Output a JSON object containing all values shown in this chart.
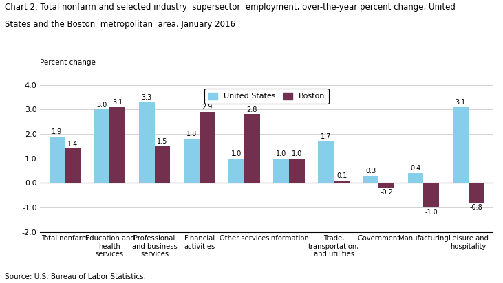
{
  "title_line1": "Chart 2. Total nonfarm and selected industry  supersector  employment, over-the-year percent change, United",
  "title_line2": "States and the Boston  metropolitan  area, January 2016",
  "ylabel": "Percent change",
  "categories": [
    "Total nonfarm",
    "Education and\nhealth\nservices",
    "Professional\nand business\nservices",
    "Financial\nactivities",
    "Other services",
    "Information",
    "Trade,\ntransportation,\nand utilities",
    "Government",
    "Manufacturing",
    "Leisure and\nhospitality"
  ],
  "us_values": [
    1.9,
    3.0,
    3.3,
    1.8,
    1.0,
    1.0,
    1.7,
    0.3,
    0.4,
    3.1
  ],
  "boston_values": [
    1.4,
    3.1,
    1.5,
    2.9,
    2.8,
    1.0,
    0.1,
    -0.2,
    -1.0,
    -0.8
  ],
  "us_color": "#87CEEB",
  "boston_color": "#722F4E",
  "ylim": [
    -2.0,
    4.0
  ],
  "yticks": [
    -2.0,
    -1.0,
    0.0,
    1.0,
    2.0,
    3.0,
    4.0
  ],
  "source": "Source: U.S. Bureau of Labor Statistics.",
  "legend_us": "United States",
  "legend_boston": "Boston",
  "bar_width": 0.35
}
